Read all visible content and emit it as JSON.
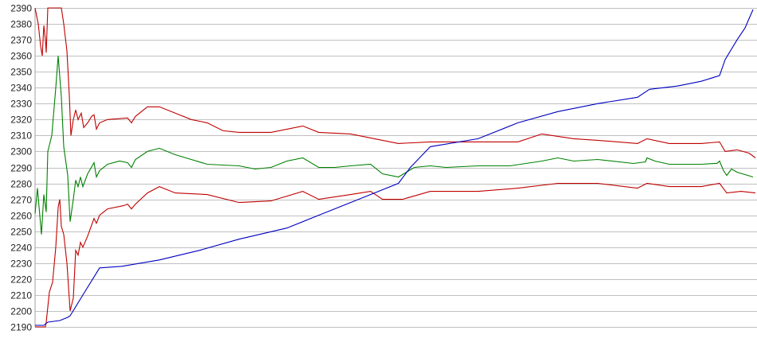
{
  "chart_data": {
    "type": "line",
    "title": "",
    "xlabel": "",
    "ylabel": "",
    "ylim": [
      2190,
      2390
    ],
    "xlim": [
      0,
      904
    ],
    "y_ticks": [
      "2390",
      "2380",
      "2370",
      "2360",
      "2350",
      "2340",
      "2330",
      "2320",
      "2310",
      "2300",
      "2290",
      "2280",
      "2270",
      "2260",
      "2250",
      "2240",
      "2230",
      "2220",
      "2210",
      "2200",
      "2190"
    ],
    "grid": true,
    "legend": "none",
    "series": [
      {
        "color": "#c00000",
        "points": [
          [
            0,
            2390
          ],
          [
            4,
            2380
          ],
          [
            7,
            2366
          ],
          [
            9,
            2360
          ],
          [
            11,
            2379
          ],
          [
            13,
            2370
          ],
          [
            14,
            2362
          ],
          [
            16,
            2390
          ],
          [
            33,
            2390
          ],
          [
            36,
            2380
          ],
          [
            40,
            2363
          ],
          [
            43,
            2335
          ],
          [
            45,
            2310
          ],
          [
            48,
            2320
          ],
          [
            51,
            2326
          ],
          [
            54,
            2320
          ],
          [
            58,
            2324
          ],
          [
            61,
            2315
          ],
          [
            66,
            2318
          ],
          [
            71,
            2322
          ],
          [
            74,
            2323
          ],
          [
            77,
            2314
          ],
          [
            81,
            2318
          ],
          [
            91,
            2320
          ],
          [
            116,
            2321
          ],
          [
            121,
            2318
          ],
          [
            126,
            2322
          ],
          [
            141,
            2328
          ],
          [
            156,
            2328
          ],
          [
            176,
            2324
          ],
          [
            196,
            2320
          ],
          [
            216,
            2318
          ],
          [
            236,
            2313
          ],
          [
            256,
            2312
          ],
          [
            296,
            2312
          ],
          [
            336,
            2316
          ],
          [
            356,
            2312
          ],
          [
            396,
            2311
          ],
          [
            426,
            2308
          ],
          [
            456,
            2305
          ],
          [
            496,
            2306
          ],
          [
            556,
            2306
          ],
          [
            606,
            2306
          ],
          [
            636,
            2311
          ],
          [
            676,
            2308
          ],
          [
            706,
            2307
          ],
          [
            756,
            2305
          ],
          [
            768,
            2308
          ],
          [
            796,
            2305
          ],
          [
            836,
            2305
          ],
          [
            859,
            2306
          ],
          [
            866,
            2300
          ],
          [
            881,
            2301
          ],
          [
            896,
            2299
          ],
          [
            904,
            2296
          ]
        ]
      },
      {
        "color": "#008000",
        "points": [
          [
            0,
            2261
          ],
          [
            3,
            2277
          ],
          [
            8,
            2248
          ],
          [
            11,
            2273
          ],
          [
            14,
            2262
          ],
          [
            16,
            2300
          ],
          [
            21,
            2310
          ],
          [
            26,
            2340
          ],
          [
            29,
            2360
          ],
          [
            33,
            2334
          ],
          [
            36,
            2303
          ],
          [
            41,
            2285
          ],
          [
            44,
            2256
          ],
          [
            48,
            2270
          ],
          [
            51,
            2282
          ],
          [
            54,
            2278
          ],
          [
            57,
            2284
          ],
          [
            60,
            2278
          ],
          [
            66,
            2286
          ],
          [
            74,
            2293
          ],
          [
            77,
            2284
          ],
          [
            81,
            2288
          ],
          [
            91,
            2292
          ],
          [
            106,
            2294
          ],
          [
            116,
            2293
          ],
          [
            121,
            2290
          ],
          [
            126,
            2295
          ],
          [
            141,
            2300
          ],
          [
            156,
            2302
          ],
          [
            176,
            2298
          ],
          [
            196,
            2295
          ],
          [
            216,
            2292
          ],
          [
            256,
            2291
          ],
          [
            276,
            2289
          ],
          [
            296,
            2290
          ],
          [
            316,
            2294
          ],
          [
            336,
            2296
          ],
          [
            356,
            2290
          ],
          [
            376,
            2290
          ],
          [
            396,
            2291
          ],
          [
            421,
            2292
          ],
          [
            436,
            2286
          ],
          [
            456,
            2284
          ],
          [
            476,
            2290
          ],
          [
            496,
            2291
          ],
          [
            516,
            2290
          ],
          [
            556,
            2291
          ],
          [
            596,
            2291
          ],
          [
            636,
            2294
          ],
          [
            656,
            2296
          ],
          [
            676,
            2294
          ],
          [
            706,
            2295
          ],
          [
            751,
            2292.5
          ],
          [
            766,
            2293.5
          ],
          [
            768,
            2296
          ],
          [
            778,
            2294
          ],
          [
            796,
            2292
          ],
          [
            836,
            2292
          ],
          [
            856,
            2292.6
          ],
          [
            859,
            2294
          ],
          [
            864,
            2288
          ],
          [
            868,
            2285
          ],
          [
            874,
            2289
          ],
          [
            881,
            2287
          ],
          [
            891,
            2285.5
          ],
          [
            901,
            2284
          ]
        ]
      },
      {
        "color": "#c00000",
        "points": [
          [
            0,
            2190
          ],
          [
            13,
            2190
          ],
          [
            14,
            2193
          ],
          [
            18,
            2212
          ],
          [
            22,
            2218
          ],
          [
            26,
            2240
          ],
          [
            29,
            2265
          ],
          [
            31,
            2270
          ],
          [
            33,
            2253
          ],
          [
            36,
            2248
          ],
          [
            40,
            2230
          ],
          [
            44,
            2200
          ],
          [
            48,
            2208
          ],
          [
            51,
            2238
          ],
          [
            54,
            2235
          ],
          [
            57,
            2243
          ],
          [
            60,
            2240
          ],
          [
            66,
            2247
          ],
          [
            74,
            2258
          ],
          [
            77,
            2255
          ],
          [
            81,
            2260
          ],
          [
            91,
            2264
          ],
          [
            111,
            2266
          ],
          [
            116,
            2267
          ],
          [
            121,
            2264
          ],
          [
            126,
            2267
          ],
          [
            141,
            2274
          ],
          [
            156,
            2278
          ],
          [
            176,
            2274
          ],
          [
            216,
            2273
          ],
          [
            256,
            2268
          ],
          [
            296,
            2269
          ],
          [
            336,
            2275
          ],
          [
            356,
            2270
          ],
          [
            396,
            2273
          ],
          [
            421,
            2275
          ],
          [
            436,
            2270
          ],
          [
            461,
            2270
          ],
          [
            496,
            2275
          ],
          [
            556,
            2275
          ],
          [
            606,
            2277
          ],
          [
            656,
            2280
          ],
          [
            706,
            2280
          ],
          [
            756,
            2277
          ],
          [
            768,
            2280
          ],
          [
            796,
            2278
          ],
          [
            836,
            2278
          ],
          [
            859,
            2280
          ],
          [
            868,
            2274
          ],
          [
            886,
            2275
          ],
          [
            904,
            2274
          ]
        ]
      },
      {
        "color": "#0000c0",
        "points": [
          [
            0,
            2191
          ],
          [
            11,
            2191
          ],
          [
            16,
            2193
          ],
          [
            31,
            2194
          ],
          [
            41,
            2196
          ],
          [
            44,
            2197
          ],
          [
            60,
            2210
          ],
          [
            81,
            2227
          ],
          [
            109,
            2228
          ],
          [
            156,
            2232
          ],
          [
            206,
            2238
          ],
          [
            256,
            2245
          ],
          [
            316,
            2252
          ],
          [
            356,
            2260
          ],
          [
            406,
            2270
          ],
          [
            456,
            2280
          ],
          [
            471,
            2290
          ],
          [
            496,
            2303
          ],
          [
            556,
            2308
          ],
          [
            606,
            2318
          ],
          [
            656,
            2325
          ],
          [
            706,
            2330
          ],
          [
            756,
            2334
          ],
          [
            771,
            2339
          ],
          [
            806,
            2341
          ],
          [
            836,
            2344
          ],
          [
            859,
            2347.6
          ],
          [
            866,
            2357.6
          ],
          [
            881,
            2370
          ],
          [
            891,
            2377.5
          ],
          [
            901,
            2389
          ]
        ]
      }
    ]
  }
}
